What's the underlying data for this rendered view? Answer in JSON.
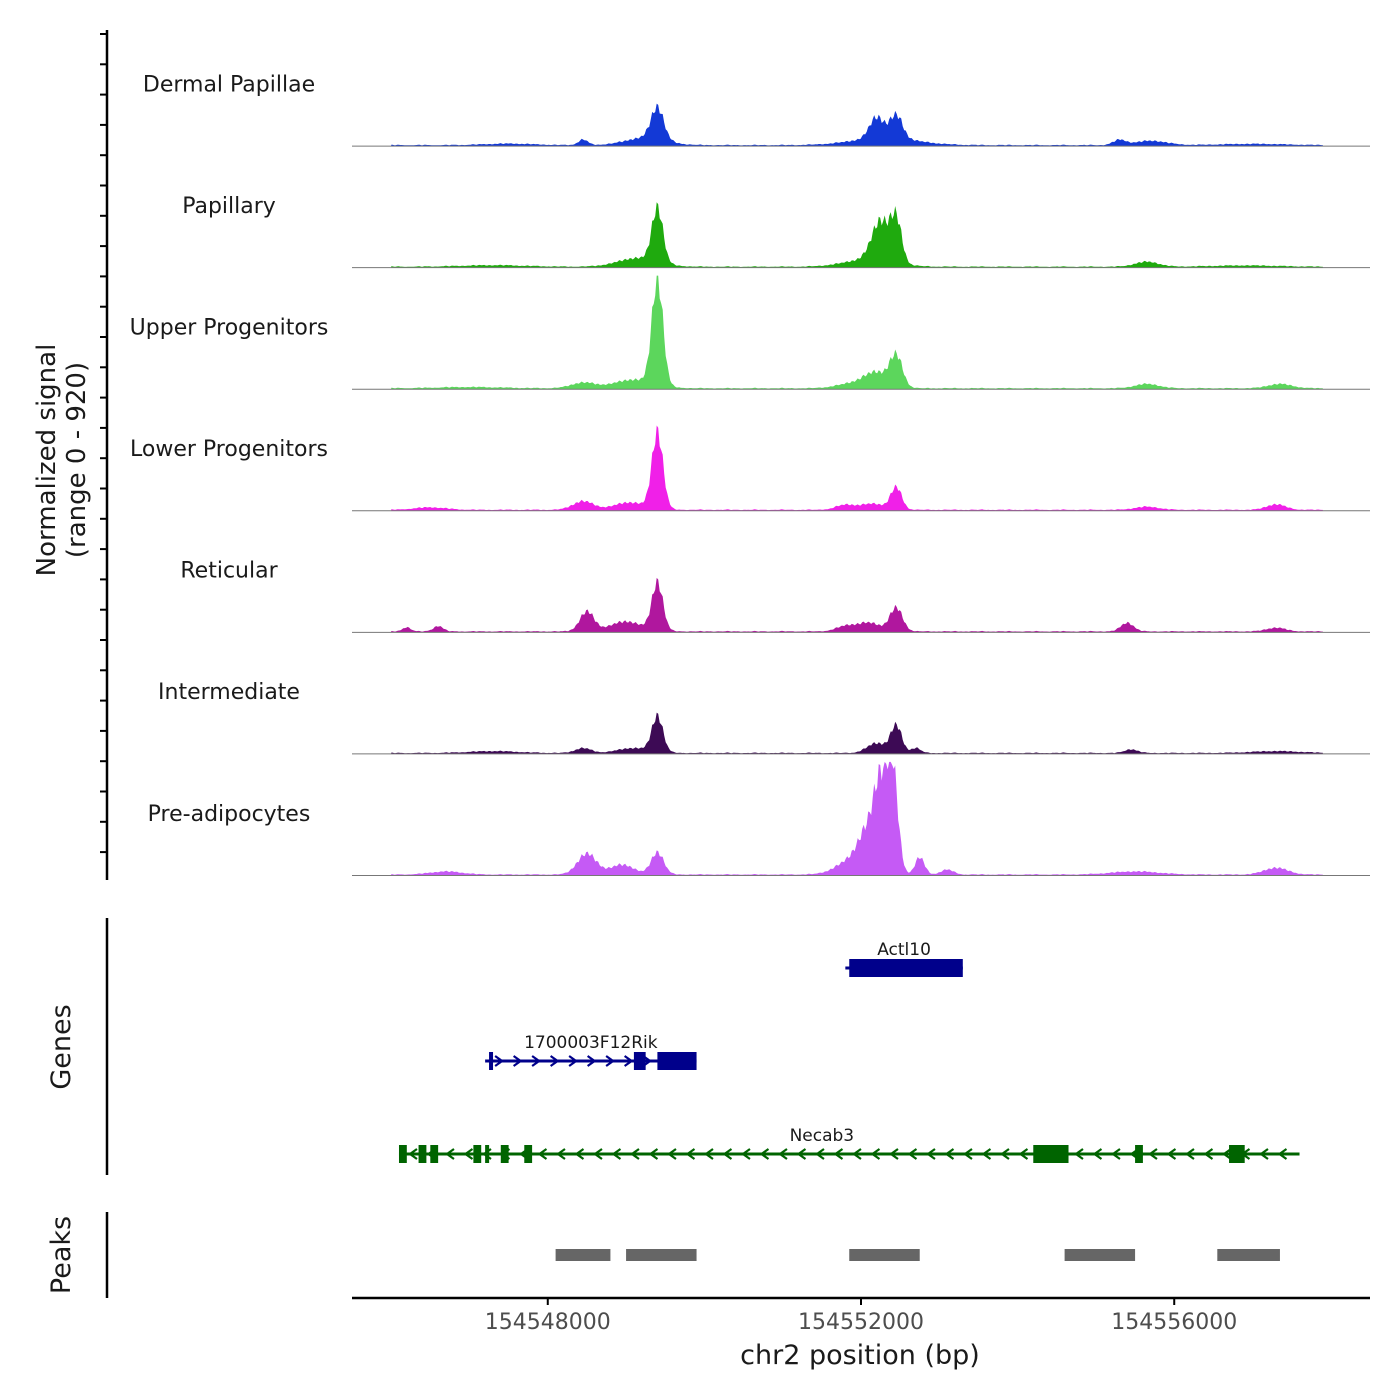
{
  "chart_data": {
    "type": "area",
    "title": "",
    "xlabel": "chr2 position (bp)",
    "ylabel": "Normalized signal",
    "ylabel_sub": "(range 0 - 920)",
    "xlim": [
      154545500,
      154558500
    ],
    "ylim": [
      0,
      920
    ],
    "xticks": [
      154548000,
      154552000,
      154556000
    ],
    "xtick_labels": [
      "154548000",
      "154552000",
      "154556000"
    ],
    "tracks": [
      {
        "name": "Dermal Papillae",
        "color": "#1339D6",
        "peaks": [
          [
            154548450,
            45,
            60
          ],
          [
            154549400,
            260,
            80
          ],
          [
            154549250,
            60,
            250
          ],
          [
            154552200,
            170,
            90
          ],
          [
            154552450,
            190,
            80
          ],
          [
            154552300,
            60,
            400
          ],
          [
            154555300,
            40,
            80
          ],
          [
            154555700,
            35,
            200
          ],
          [
            154547500,
            12,
            300
          ],
          [
            154557000,
            10,
            400
          ]
        ]
      },
      {
        "name": "Papillary",
        "color": "#1FAA0E",
        "peaks": [
          [
            154549400,
            440,
            70
          ],
          [
            154549150,
            70,
            250
          ],
          [
            154552250,
            320,
            110
          ],
          [
            154552450,
            340,
            70
          ],
          [
            154552100,
            60,
            300
          ],
          [
            154555650,
            40,
            150
          ],
          [
            154547300,
            12,
            400
          ],
          [
            154556900,
            10,
            400
          ]
        ]
      },
      {
        "name": "Upper Progenitors",
        "color": "#5CD65C",
        "peaks": [
          [
            154549400,
            860,
            70
          ],
          [
            154549100,
            70,
            250
          ],
          [
            154548450,
            45,
            150
          ],
          [
            154552450,
            250,
            80
          ],
          [
            154552200,
            120,
            150
          ],
          [
            154551900,
            40,
            200
          ],
          [
            154555650,
            35,
            150
          ],
          [
            154557350,
            35,
            150
          ],
          [
            154547000,
            10,
            400
          ]
        ]
      },
      {
        "name": "Lower Progenitors",
        "color": "#F020E8",
        "peaks": [
          [
            154549400,
            620,
            70
          ],
          [
            154549050,
            60,
            200
          ],
          [
            154548450,
            70,
            130
          ],
          [
            154552450,
            180,
            70
          ],
          [
            154552150,
            50,
            150
          ],
          [
            154551800,
            40,
            120
          ],
          [
            154555650,
            25,
            150
          ],
          [
            154557300,
            45,
            120
          ],
          [
            154546500,
            20,
            200
          ]
        ]
      },
      {
        "name": "Reticular",
        "color": "#B0179E",
        "peaks": [
          [
            154548500,
            160,
            90
          ],
          [
            154549400,
            390,
            70
          ],
          [
            154549000,
            80,
            200
          ],
          [
            154552450,
            190,
            80
          ],
          [
            154552100,
            70,
            150
          ],
          [
            154551800,
            40,
            120
          ],
          [
            154555400,
            70,
            80
          ],
          [
            154546600,
            45,
            60
          ],
          [
            154546200,
            35,
            50
          ],
          [
            154557300,
            30,
            120
          ]
        ]
      },
      {
        "name": "Intermediate",
        "color": "#3D0A55",
        "peaks": [
          [
            154549400,
            290,
            70
          ],
          [
            154549100,
            40,
            200
          ],
          [
            154548450,
            40,
            100
          ],
          [
            154552450,
            220,
            70
          ],
          [
            154552200,
            80,
            120
          ],
          [
            154552700,
            40,
            60
          ],
          [
            154555450,
            30,
            80
          ],
          [
            154547300,
            15,
            300
          ],
          [
            154557300,
            15,
            300
          ]
        ]
      },
      {
        "name": "Pre-adipocytes",
        "color": "#C55AF5",
        "peaks": [
          [
            154552400,
            850,
            70
          ],
          [
            154552250,
            600,
            80
          ],
          [
            154552100,
            300,
            120
          ],
          [
            154551900,
            120,
            200
          ],
          [
            154552750,
            140,
            60
          ],
          [
            154549400,
            180,
            80
          ],
          [
            154548500,
            170,
            120
          ],
          [
            154548950,
            80,
            150
          ],
          [
            154553100,
            40,
            80
          ],
          [
            154557300,
            55,
            150
          ],
          [
            154546700,
            25,
            200
          ],
          [
            154555500,
            25,
            300
          ]
        ]
      }
    ],
    "genes_label": "Genes",
    "genes": [
      {
        "name": "Actl10",
        "color": "#00008B",
        "start": 154551800,
        "end": 154553300,
        "strand": "+",
        "exons": [
          [
            154551850,
            154553300
          ]
        ]
      },
      {
        "name": "1700003F12Rik",
        "color": "#00008B",
        "start": 154547200,
        "end": 154549900,
        "strand": "+",
        "exons": [
          [
            154547250,
            154547300
          ],
          [
            154549100,
            154549250
          ],
          [
            154549400,
            154549900
          ]
        ]
      },
      {
        "name": "Necab3",
        "color": "#006400",
        "start": 154546100,
        "end": 154557600,
        "strand": "-",
        "exons": [
          [
            154546100,
            154546200
          ],
          [
            154546350,
            154546450
          ],
          [
            154546500,
            154546600
          ],
          [
            154547050,
            154547150
          ],
          [
            154547200,
            154547250
          ],
          [
            154547400,
            154547500
          ],
          [
            154547700,
            154547800
          ],
          [
            154554200,
            154554650
          ],
          [
            154555500,
            154555600
          ],
          [
            154556700,
            154556900
          ]
        ]
      }
    ],
    "peaks_label": "Peaks",
    "peak_color": "#666666",
    "peak_regions": [
      [
        154548100,
        154548800
      ],
      [
        154549000,
        154549900
      ],
      [
        154551850,
        154552750
      ],
      [
        154554600,
        154555500
      ],
      [
        154556550,
        154557350
      ]
    ]
  }
}
